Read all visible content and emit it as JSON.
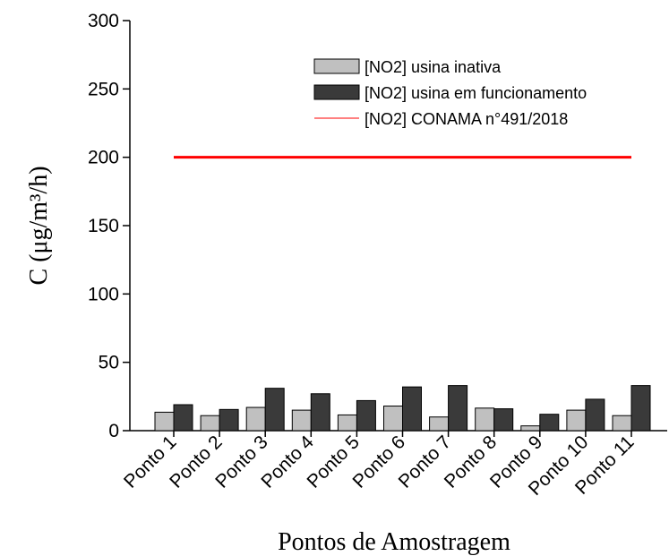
{
  "chart_data": {
    "type": "bar",
    "x_label": "Pontos de Amostragem",
    "y_label": "C (μg/m³/h)",
    "categories": [
      "Ponto 1",
      "Ponto 2",
      "Ponto 3",
      "Ponto 4",
      "Ponto 5",
      "Ponto 6",
      "Ponto 7",
      "Ponto 8",
      "Ponto 9",
      "Ponto 10",
      "Ponto 11"
    ],
    "series": [
      {
        "name": "[NO2] usina inativa",
        "type": "bar",
        "color": "#c0c0c0",
        "values": [
          13.5,
          11,
          17,
          15,
          11.5,
          18,
          10,
          16.5,
          3.5,
          15,
          11
        ]
      },
      {
        "name": "[NO2] usina em funcionamento",
        "type": "bar",
        "color": "#3a3a3a",
        "values": [
          19,
          15.5,
          31,
          27,
          22,
          32,
          33,
          16,
          12,
          23,
          33
        ]
      },
      {
        "name": "[NO2] CONAMA  n°491/2018",
        "type": "line",
        "color": "#ff0000",
        "values": [
          200,
          200,
          200,
          200,
          200,
          200,
          200,
          200,
          200,
          200,
          200
        ]
      }
    ],
    "ylim": [
      0,
      300
    ],
    "yticks": [
      0,
      50,
      100,
      150,
      200,
      250,
      300
    ],
    "legend": "top-right"
  }
}
